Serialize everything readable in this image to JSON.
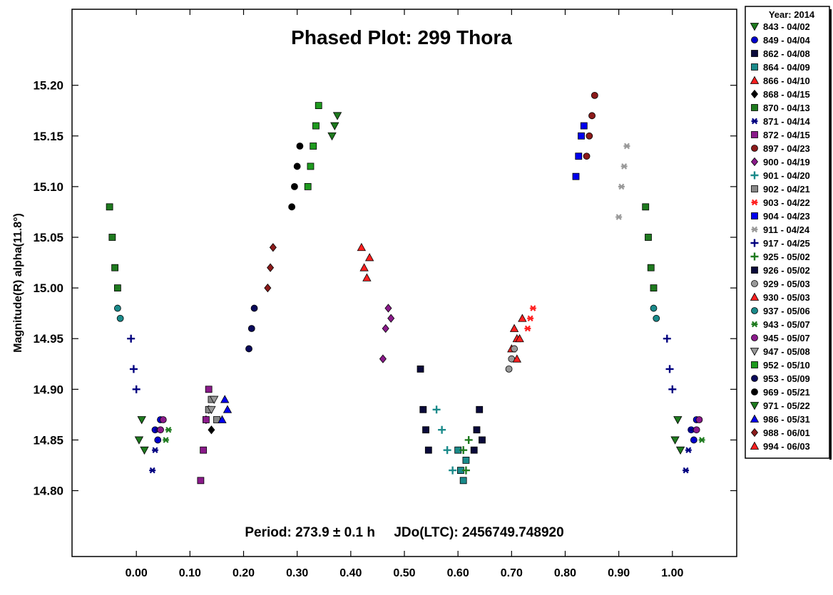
{
  "chart_data": {
    "type": "scatter",
    "title": "Phased Plot: 299 Thora",
    "ylabel": "Magnitude(R) alpha(11.8°)",
    "xlabel": "",
    "xlim": [
      -0.12,
      1.12
    ],
    "ylim": [
      15.275,
      14.735
    ],
    "y_inverted": true,
    "x_ticks": [
      "0.00",
      "0.10",
      "0.20",
      "0.30",
      "0.40",
      "0.50",
      "0.60",
      "0.70",
      "0.80",
      "0.90",
      "1.00"
    ],
    "y_ticks": [
      "14.80",
      "14.85",
      "14.90",
      "14.95",
      "15.00",
      "15.05",
      "15.10",
      "15.15",
      "15.20"
    ],
    "annotation": "Period: 273.9 ± 0.1 h     JDo(LTC): 2456749.748920",
    "legend_title": "Year: 2014",
    "grid": false,
    "legend_position": "right",
    "series": [
      {
        "name": "843 - 04/02",
        "marker": "triangle-down",
        "color": "#1e7a1e",
        "points": [
          [
            0.005,
            14.85
          ],
          [
            0.01,
            14.87
          ],
          [
            0.015,
            14.84
          ],
          [
            1.005,
            14.85
          ],
          [
            1.01,
            14.87
          ],
          [
            1.015,
            14.84
          ]
        ]
      },
      {
        "name": "849 - 04/04",
        "marker": "circle",
        "color": "#0000cc",
        "points": [
          [
            0.035,
            14.86
          ],
          [
            0.04,
            14.85
          ],
          [
            0.045,
            14.87
          ],
          [
            1.035,
            14.86
          ],
          [
            1.04,
            14.85
          ],
          [
            1.045,
            14.87
          ]
        ]
      },
      {
        "name": "862 - 04/08",
        "marker": "square",
        "color": "#0a0a3a",
        "points": [
          [
            0.53,
            14.92
          ],
          [
            0.535,
            14.88
          ],
          [
            0.54,
            14.86
          ],
          [
            0.545,
            14.84
          ]
        ]
      },
      {
        "name": "864 - 04/09",
        "marker": "square",
        "color": "#1a8a8a",
        "points": [
          [
            0.6,
            14.84
          ],
          [
            0.605,
            14.82
          ],
          [
            0.61,
            14.81
          ],
          [
            0.615,
            14.83
          ]
        ]
      },
      {
        "name": "866 - 04/10",
        "marker": "triangle",
        "color": "#ff2020",
        "points": [
          [
            0.7,
            14.94
          ],
          [
            0.705,
            14.96
          ],
          [
            0.71,
            14.95
          ]
        ]
      },
      {
        "name": "868 - 04/15",
        "marker": "diamond",
        "color": "#000000",
        "points": [
          [
            0.13,
            14.87
          ],
          [
            0.135,
            14.88
          ],
          [
            0.14,
            14.86
          ]
        ]
      },
      {
        "name": "870 - 04/13",
        "marker": "square",
        "color": "#1e7a1e",
        "points": [
          [
            -0.05,
            15.08
          ],
          [
            -0.045,
            15.05
          ],
          [
            -0.04,
            15.02
          ],
          [
            -0.035,
            15.0
          ],
          [
            0.95,
            15.08
          ],
          [
            0.955,
            15.05
          ],
          [
            0.96,
            15.02
          ],
          [
            0.965,
            15.0
          ]
        ]
      },
      {
        "name": "871 - 04/14",
        "marker": "asterisk",
        "color": "#000080",
        "points": [
          [
            0.03,
            14.82
          ],
          [
            0.035,
            14.84
          ],
          [
            0.04,
            14.86
          ],
          [
            1.025,
            14.82
          ],
          [
            1.03,
            14.84
          ],
          [
            1.035,
            14.86
          ]
        ]
      },
      {
        "name": "872 - 04/15",
        "marker": "square",
        "color": "#8a1a8a",
        "points": [
          [
            0.12,
            14.81
          ],
          [
            0.125,
            14.84
          ],
          [
            0.13,
            14.87
          ],
          [
            0.135,
            14.9
          ]
        ]
      },
      {
        "name": "897 - 04/23",
        "marker": "hexagon",
        "color": "#8b1a1a",
        "points": [
          [
            0.84,
            15.13
          ],
          [
            0.845,
            15.15
          ],
          [
            0.85,
            15.17
          ],
          [
            0.855,
            15.19
          ]
        ]
      },
      {
        "name": "900 - 04/19",
        "marker": "diamond",
        "color": "#8a1a8a",
        "points": [
          [
            0.46,
            14.93
          ],
          [
            0.465,
            14.96
          ],
          [
            0.47,
            14.98
          ],
          [
            0.475,
            14.97
          ]
        ]
      },
      {
        "name": "901 - 04/20",
        "marker": "plus",
        "color": "#1a8a8a",
        "points": [
          [
            0.56,
            14.88
          ],
          [
            0.57,
            14.86
          ],
          [
            0.58,
            14.84
          ],
          [
            0.59,
            14.82
          ]
        ]
      },
      {
        "name": "902 - 04/21",
        "marker": "square",
        "color": "#888888",
        "points": [
          [
            0.135,
            14.88
          ],
          [
            0.14,
            14.89
          ],
          [
            0.15,
            14.87
          ]
        ]
      },
      {
        "name": "903 - 04/22",
        "marker": "asterisk",
        "color": "#ff2020",
        "points": [
          [
            0.73,
            14.96
          ],
          [
            0.735,
            14.97
          ],
          [
            0.74,
            14.98
          ]
        ]
      },
      {
        "name": "904 - 04/23",
        "marker": "square",
        "color": "#0000ee",
        "points": [
          [
            0.82,
            15.11
          ],
          [
            0.825,
            15.13
          ],
          [
            0.83,
            15.15
          ],
          [
            0.835,
            15.16
          ]
        ]
      },
      {
        "name": "911 - 04/24",
        "marker": "asterisk",
        "color": "#999999",
        "points": [
          [
            0.9,
            15.07
          ],
          [
            0.905,
            15.1
          ],
          [
            0.91,
            15.12
          ],
          [
            0.915,
            15.14
          ]
        ]
      },
      {
        "name": "917 - 04/25",
        "marker": "plus",
        "color": "#000080",
        "points": [
          [
            -0.01,
            14.95
          ],
          [
            -0.005,
            14.92
          ],
          [
            0.0,
            14.9
          ],
          [
            0.99,
            14.95
          ],
          [
            0.995,
            14.92
          ],
          [
            1.0,
            14.9
          ]
        ]
      },
      {
        "name": "925 - 05/02",
        "marker": "plus",
        "color": "#1e7a1e",
        "points": [
          [
            0.61,
            14.84
          ],
          [
            0.615,
            14.82
          ],
          [
            0.62,
            14.85
          ]
        ]
      },
      {
        "name": "926 - 05/02",
        "marker": "square",
        "color": "#0a0a3a",
        "points": [
          [
            0.63,
            14.84
          ],
          [
            0.635,
            14.86
          ],
          [
            0.64,
            14.88
          ],
          [
            0.645,
            14.85
          ]
        ]
      },
      {
        "name": "929 - 05/03",
        "marker": "circle",
        "color": "#999999",
        "points": [
          [
            0.695,
            14.92
          ],
          [
            0.7,
            14.93
          ],
          [
            0.705,
            14.94
          ]
        ]
      },
      {
        "name": "930 - 05/03",
        "marker": "triangle",
        "color": "#ff2020",
        "points": [
          [
            0.71,
            14.93
          ],
          [
            0.715,
            14.95
          ],
          [
            0.72,
            14.97
          ]
        ]
      },
      {
        "name": "937 - 05/06",
        "marker": "hexagon",
        "color": "#1a8a8a",
        "points": [
          [
            -0.035,
            14.98
          ],
          [
            -0.03,
            14.97
          ],
          [
            0.965,
            14.98
          ],
          [
            0.97,
            14.97
          ]
        ]
      },
      {
        "name": "943 - 05/07",
        "marker": "asterisk",
        "color": "#1e7a1e",
        "points": [
          [
            0.055,
            14.85
          ],
          [
            0.06,
            14.86
          ],
          [
            1.055,
            14.85
          ]
        ]
      },
      {
        "name": "945 - 05/07",
        "marker": "hexagon",
        "color": "#8a1a8a",
        "points": [
          [
            0.045,
            14.86
          ],
          [
            0.05,
            14.87
          ],
          [
            1.045,
            14.86
          ],
          [
            1.05,
            14.87
          ]
        ]
      },
      {
        "name": "947 - 05/08",
        "marker": "triangle-down",
        "color": "#999999",
        "points": [
          [
            0.14,
            14.88
          ],
          [
            0.145,
            14.89
          ]
        ]
      },
      {
        "name": "952 - 05/10",
        "marker": "square",
        "color": "#1e9a1e",
        "points": [
          [
            0.32,
            15.1
          ],
          [
            0.325,
            15.12
          ],
          [
            0.33,
            15.14
          ],
          [
            0.335,
            15.16
          ],
          [
            0.34,
            15.18
          ]
        ]
      },
      {
        "name": "953 - 05/09",
        "marker": "hexagon",
        "color": "#0a0a5a",
        "points": [
          [
            0.21,
            14.94
          ],
          [
            0.215,
            14.96
          ],
          [
            0.22,
            14.98
          ]
        ]
      },
      {
        "name": "969 - 05/21",
        "marker": "hexagon",
        "color": "#000000",
        "points": [
          [
            0.29,
            15.08
          ],
          [
            0.295,
            15.1
          ],
          [
            0.3,
            15.12
          ],
          [
            0.305,
            15.14
          ]
        ]
      },
      {
        "name": "971 - 05/22",
        "marker": "triangle-down",
        "color": "#1e7a1e",
        "points": [
          [
            0.365,
            15.15
          ],
          [
            0.37,
            15.16
          ],
          [
            0.375,
            15.17
          ]
        ]
      },
      {
        "name": "986 - 05/31",
        "marker": "triangle",
        "color": "#0000ee",
        "points": [
          [
            0.16,
            14.87
          ],
          [
            0.165,
            14.89
          ],
          [
            0.17,
            14.88
          ]
        ]
      },
      {
        "name": "988 - 06/01",
        "marker": "diamond",
        "color": "#8b1a1a",
        "points": [
          [
            0.245,
            15.0
          ],
          [
            0.25,
            15.02
          ],
          [
            0.255,
            15.04
          ]
        ]
      },
      {
        "name": "994 - 06/03",
        "marker": "triangle",
        "color": "#ff2020",
        "points": [
          [
            0.42,
            15.04
          ],
          [
            0.425,
            15.02
          ],
          [
            0.43,
            15.01
          ],
          [
            0.435,
            15.03
          ]
        ]
      }
    ]
  }
}
